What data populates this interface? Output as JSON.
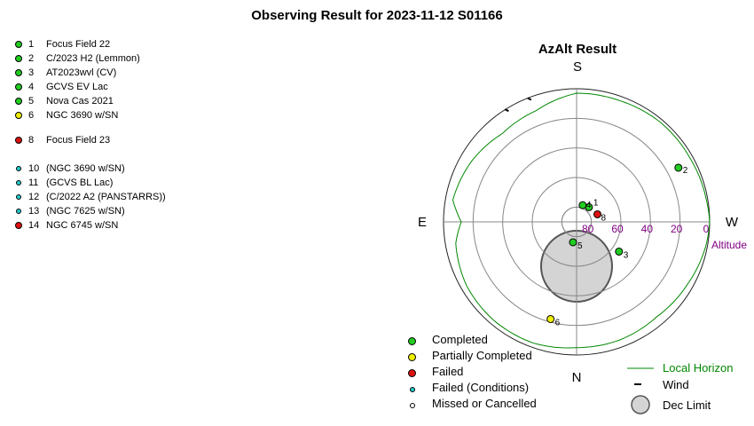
{
  "page_title": "Observing Result for 2023-11-12 S01166",
  "targets": [
    {
      "num": "1",
      "name": "Focus Field 22",
      "status": "completed"
    },
    {
      "num": "2",
      "name": "C/2023 H2 (Lemmon)",
      "status": "completed"
    },
    {
      "num": "3",
      "name": "AT2023wvl (CV)",
      "status": "completed"
    },
    {
      "num": "4",
      "name": "GCVS EV Lac",
      "status": "completed"
    },
    {
      "num": "5",
      "name": "Nova Cas 2021",
      "status": "completed"
    },
    {
      "num": "6",
      "name": "NGC 3690 w/SN",
      "status": "partial"
    },
    {
      "num": "8",
      "name": "Focus Field 23",
      "status": "failed"
    },
    {
      "num": "10",
      "name": "(NGC 3690 w/SN)",
      "status": "failed_conditions"
    },
    {
      "num": "11",
      "name": "(GCVS BL Lac)",
      "status": "failed_conditions"
    },
    {
      "num": "12",
      "name": "(C/2022 A2 (PANSTARRS))",
      "status": "failed_conditions"
    },
    {
      "num": "13",
      "name": "(NGC 7625 w/SN)",
      "status": "failed_conditions"
    },
    {
      "num": "14",
      "name": "NGC 6745 w/SN",
      "status": "failed"
    }
  ],
  "status_colors": {
    "completed": "#22cc22",
    "partial": "#eeee00",
    "failed": "#dd1111",
    "failed_conditions": "#22cccc",
    "missed": "#ffffff"
  },
  "legend": {
    "completed": "Completed",
    "partial": "Partially Completed",
    "failed": "Failed",
    "failed_conditions": "Failed (Conditions)",
    "missed": "Missed or Cancelled",
    "horizon": "Local Horizon",
    "wind": "Wind",
    "dec_limit": "Dec Limit"
  },
  "chart_data": {
    "type": "scatter",
    "projection": "polar-azalt",
    "title": "AzAlt Result",
    "cardinals": {
      "top": "S",
      "bottom": "N",
      "left": "E",
      "right": "W"
    },
    "radial_axis_label": "Altitude",
    "altitude_rings": [
      0,
      20,
      40,
      60,
      80
    ],
    "altitude_tick_labels": [
      "80",
      "60",
      "40",
      "20",
      "0"
    ],
    "points": [
      {
        "label": "1",
        "az": 220,
        "alt": 77,
        "status": "completed"
      },
      {
        "label": "2",
        "az": 242,
        "alt": 12,
        "status": "completed"
      },
      {
        "label": "3",
        "az": 305,
        "alt": 55,
        "status": "completed"
      },
      {
        "label": "4",
        "az": 200,
        "alt": 78,
        "status": "completed"
      },
      {
        "label": "5",
        "az": 10,
        "alt": 76,
        "status": "completed"
      },
      {
        "label": "6",
        "az": 15,
        "alt": 22,
        "status": "partial"
      },
      {
        "label": "8",
        "az": 250,
        "alt": 75,
        "status": "failed"
      }
    ],
    "horizon_color": "#008800",
    "horizon_profile_alt": [
      {
        "az": 0,
        "alt": 5
      },
      {
        "az": 20,
        "alt": 3
      },
      {
        "az": 40,
        "alt": 3
      },
      {
        "az": 60,
        "alt": 4
      },
      {
        "az": 80,
        "alt": 7
      },
      {
        "az": 90,
        "alt": 12
      },
      {
        "az": 100,
        "alt": 5
      },
      {
        "az": 120,
        "alt": 8
      },
      {
        "az": 140,
        "alt": 12
      },
      {
        "az": 160,
        "alt": 10
      },
      {
        "az": 180,
        "alt": 3
      },
      {
        "az": 200,
        "alt": 3
      },
      {
        "az": 220,
        "alt": 2
      },
      {
        "az": 240,
        "alt": 2
      },
      {
        "az": 260,
        "alt": 1
      },
      {
        "az": 270,
        "alt": 0
      },
      {
        "az": 280,
        "alt": 1
      },
      {
        "az": 300,
        "alt": 4
      },
      {
        "az": 320,
        "alt": 6
      },
      {
        "az": 340,
        "alt": 5
      },
      {
        "az": 360,
        "alt": 5
      }
    ],
    "wind": [
      {
        "az": 148,
        "alt": 1
      },
      {
        "az": 159,
        "alt": 1
      }
    ],
    "dec_limit": {
      "center_az": 0,
      "center_alt": 60,
      "radius_deg": 24
    }
  }
}
